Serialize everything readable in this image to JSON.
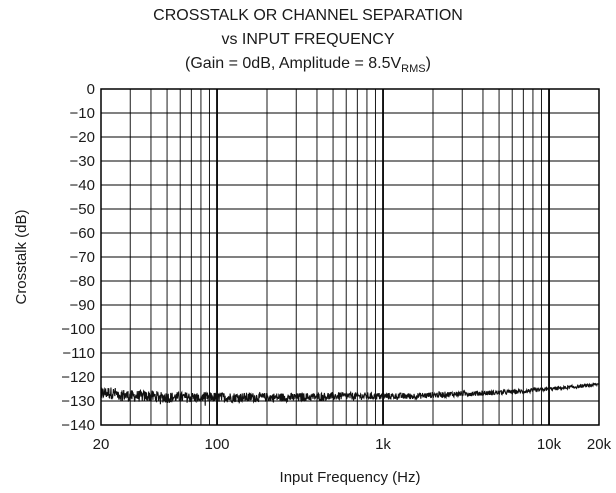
{
  "chart_data": {
    "type": "line",
    "title_lines": [
      "CROSSTALK OR CHANNEL SEPARATION",
      "vs INPUT FREQUENCY"
    ],
    "subtitle_parts": {
      "before": "(Gain = 0dB, Amplitude = 8.5V",
      "subscript": "RMS",
      "after": ")"
    },
    "xlabel": "Input Frequency (Hz)",
    "ylabel": "Crosstalk (dB)",
    "x_scale": "log",
    "xlim": [
      20,
      20000
    ],
    "ylim": [
      -140,
      0
    ],
    "grid": true,
    "x_tick_values": [
      20,
      100,
      1000,
      10000,
      20000
    ],
    "x_tick_labels": [
      "20",
      "100",
      "1k",
      "10k",
      "20k"
    ],
    "y_tick_values": [
      0,
      -10,
      -20,
      -30,
      -40,
      -50,
      -60,
      -70,
      -80,
      -90,
      -100,
      -110,
      -120,
      -130,
      -140
    ],
    "y_tick_labels": [
      "0",
      "−10",
      "−20",
      "−30",
      "−40",
      "−50",
      "−60",
      "−70",
      "−80",
      "−90",
      "−100",
      "−110",
      "−120",
      "−130",
      "−140"
    ],
    "series": [
      {
        "x": [
          20,
          22,
          25,
          30,
          40,
          50,
          70,
          100,
          150,
          200,
          300,
          500,
          700,
          1000,
          1500,
          2000,
          3000,
          5000,
          7000,
          10000,
          15000,
          20000
        ],
        "y": [
          -127,
          -126.5,
          -127,
          -128,
          -128,
          -128.5,
          -128.5,
          -128.5,
          -128.5,
          -128.5,
          -128.5,
          -128,
          -128,
          -128,
          -128,
          -127.5,
          -127,
          -126.5,
          -126,
          -125,
          -124,
          -123
        ]
      }
    ]
  }
}
